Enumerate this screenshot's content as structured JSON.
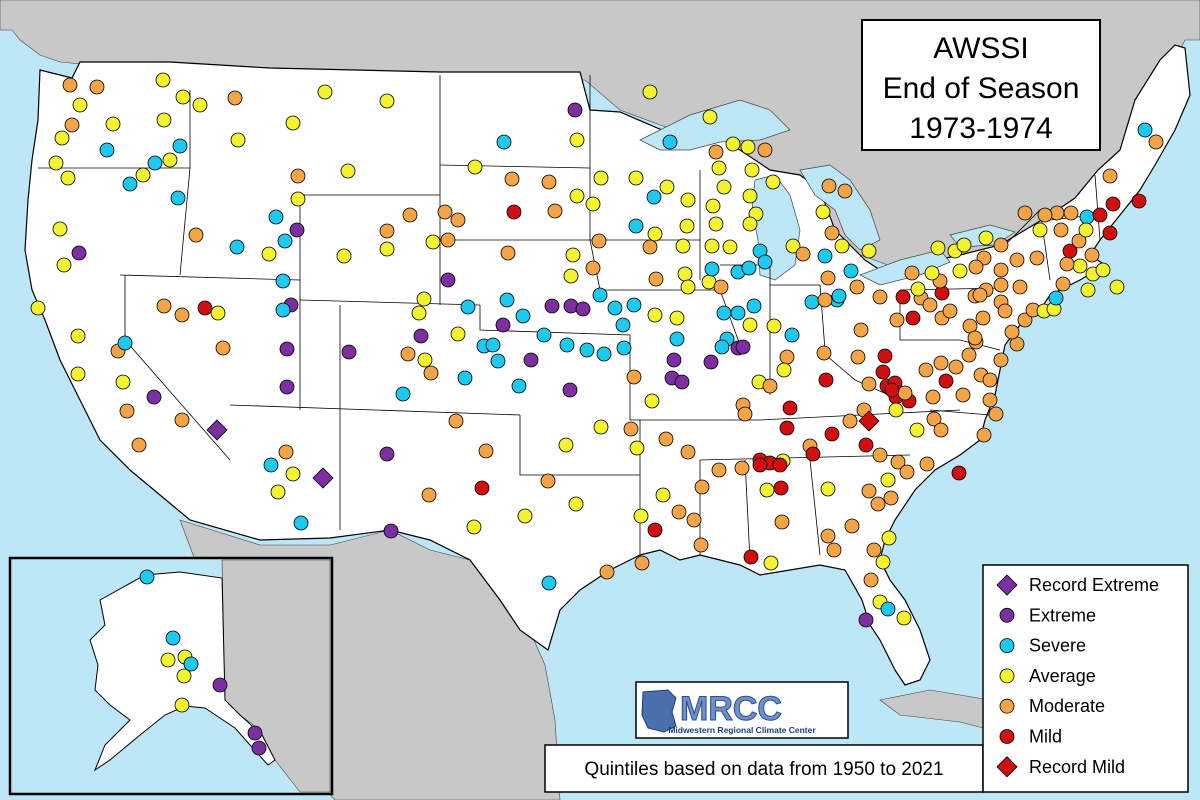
{
  "title": {
    "line1": "AWSSI",
    "line2": "End of Season",
    "line3": "1973-1974"
  },
  "logo": {
    "text": "MRCC",
    "subtext": "Midwestern Regional Climate Center"
  },
  "footer_note": "Quintiles based on data from 1950 to 2021",
  "legend": {
    "items": [
      {
        "key": "record_extreme",
        "label": "Record Extreme",
        "shape": "diamond",
        "color": "#7b2fa0"
      },
      {
        "key": "extreme",
        "label": "Extreme",
        "shape": "circle",
        "color": "#7b2fa0"
      },
      {
        "key": "severe",
        "label": "Severe",
        "shape": "circle",
        "color": "#1ec8ee"
      },
      {
        "key": "average",
        "label": "Average",
        "shape": "circle",
        "color": "#f2f231"
      },
      {
        "key": "moderate",
        "label": "Moderate",
        "shape": "circle",
        "color": "#f3a447"
      },
      {
        "key": "mild",
        "label": "Mild",
        "shape": "circle",
        "color": "#d01010"
      },
      {
        "key": "record_mild",
        "label": "Record Mild",
        "shape": "diamond",
        "color": "#d01010"
      }
    ]
  },
  "colors": {
    "ocean": "#bde6f7",
    "land_other": "#c8c8c8",
    "land_us": "#ffffff",
    "border": "#000000",
    "lakes": "#bde6f7"
  }
}
